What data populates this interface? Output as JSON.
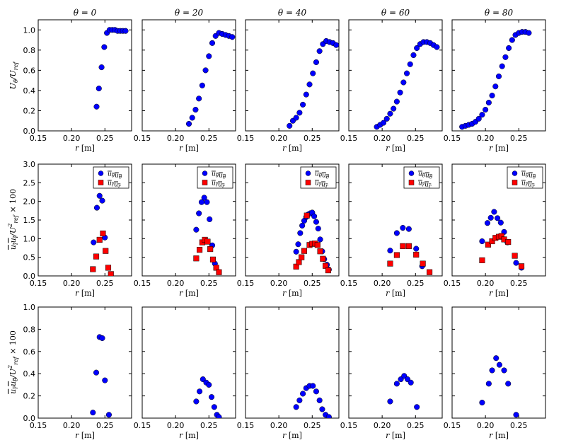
{
  "colors": {
    "theta": "#0000ff",
    "radial": "#ff0000",
    "axes": "#000000"
  },
  "chart_data": [
    {
      "type": "scatter",
      "title": "θ = 0",
      "xlabel": "r [m]",
      "ylabel": "U_θ/U_ref",
      "xlim": [
        0.15,
        0.29
      ],
      "ylim": [
        0,
        1.1
      ],
      "xticks": [
        "0.15",
        "0.20",
        "0.25"
      ],
      "yticks": [
        "0.0",
        "0.2",
        "0.4",
        "0.6",
        "0.8",
        "1.0"
      ],
      "series": [
        {
          "color": "#0000ff",
          "marker": "circle",
          "x": [
            0.2375,
            0.241,
            0.245,
            0.249,
            0.253,
            0.257,
            0.261,
            0.265,
            0.269,
            0.273,
            0.277,
            0.281
          ],
          "y": [
            0.24,
            0.42,
            0.63,
            0.83,
            0.97,
            1.0,
            1.0,
            1.0,
            0.99,
            0.99,
            0.99,
            0.99
          ]
        }
      ]
    },
    {
      "type": "scatter",
      "title": "θ = 20",
      "xlabel": "r [m]",
      "xlim": [
        0.15,
        0.29
      ],
      "ylim": [
        0,
        1.1
      ],
      "xticks": [
        "0.15",
        "0.20",
        "0.25"
      ],
      "series": [
        {
          "color": "#0000ff",
          "marker": "circle",
          "x": [
            0.22,
            0.225,
            0.23,
            0.235,
            0.24,
            0.245,
            0.25,
            0.255,
            0.26,
            0.265,
            0.27,
            0.275,
            0.28,
            0.285
          ],
          "y": [
            0.07,
            0.13,
            0.21,
            0.32,
            0.45,
            0.6,
            0.74,
            0.87,
            0.94,
            0.97,
            0.96,
            0.95,
            0.94,
            0.93
          ]
        }
      ]
    },
    {
      "type": "scatter",
      "title": "θ = 40",
      "xlabel": "r [m]",
      "xlim": [
        0.15,
        0.29
      ],
      "ylim": [
        0,
        1.1
      ],
      "xticks": [
        "0.15",
        "0.20",
        "0.25"
      ],
      "series": [
        {
          "color": "#0000ff",
          "marker": "circle",
          "x": [
            0.216,
            0.221,
            0.226,
            0.231,
            0.236,
            0.241,
            0.246,
            0.251,
            0.256,
            0.261,
            0.266,
            0.271,
            0.276,
            0.281,
            0.286
          ],
          "y": [
            0.05,
            0.1,
            0.13,
            0.18,
            0.26,
            0.36,
            0.46,
            0.57,
            0.68,
            0.79,
            0.86,
            0.89,
            0.88,
            0.87,
            0.85
          ]
        }
      ]
    },
    {
      "type": "scatter",
      "title": "θ = 60",
      "xlabel": "r [m]",
      "xlim": [
        0.15,
        0.29
      ],
      "ylim": [
        0,
        1.1
      ],
      "xticks": [
        "0.15",
        "0.20",
        "0.25"
      ],
      "series": [
        {
          "color": "#0000ff",
          "marker": "circle",
          "x": [
            0.192,
            0.197,
            0.202,
            0.207,
            0.212,
            0.217,
            0.222,
            0.227,
            0.232,
            0.237,
            0.242,
            0.247,
            0.252,
            0.257,
            0.262,
            0.267,
            0.272,
            0.277,
            0.282
          ],
          "y": [
            0.04,
            0.06,
            0.08,
            0.12,
            0.17,
            0.22,
            0.29,
            0.38,
            0.48,
            0.57,
            0.66,
            0.75,
            0.82,
            0.86,
            0.88,
            0.88,
            0.87,
            0.85,
            0.83
          ]
        }
      ]
    },
    {
      "type": "scatter",
      "title": "θ = 80",
      "xlabel": "r [m]",
      "xlim": [
        0.15,
        0.29
      ],
      "ylim": [
        0,
        1.1
      ],
      "xticks": [
        "0.15",
        "0.20",
        "0.25"
      ],
      "series": [
        {
          "color": "#0000ff",
          "marker": "circle",
          "x": [
            0.165,
            0.17,
            0.175,
            0.18,
            0.185,
            0.19,
            0.195,
            0.2,
            0.205,
            0.21,
            0.215,
            0.22,
            0.225,
            0.23,
            0.235,
            0.24,
            0.245,
            0.25,
            0.255,
            0.26,
            0.265
          ],
          "y": [
            0.04,
            0.05,
            0.06,
            0.07,
            0.09,
            0.12,
            0.16,
            0.21,
            0.28,
            0.35,
            0.44,
            0.54,
            0.64,
            0.73,
            0.82,
            0.9,
            0.95,
            0.97,
            0.98,
            0.98,
            0.97
          ]
        }
      ]
    },
    {
      "type": "scatter",
      "xlabel": "r [m]",
      "xlim": [
        0.15,
        0.29
      ],
      "ylim": [
        0,
        3.0
      ],
      "xticks": [
        "0.15",
        "0.20",
        "0.25"
      ],
      "yticks": [
        "0.0",
        "0.5",
        "1.0",
        "1.5",
        "2.0",
        "2.5",
        "3.0"
      ],
      "legend": "top-right",
      "series": [
        {
          "name": "u_θ u_θ",
          "color": "#0000ff",
          "marker": "circle",
          "x": [
            0.233,
            0.238,
            0.242,
            0.246,
            0.25
          ],
          "y": [
            0.9,
            1.83,
            2.15,
            2.02,
            1.03
          ]
        },
        {
          "name": "u_r u_r",
          "color": "#ff0000",
          "marker": "square",
          "x": [
            0.232,
            0.237,
            0.242,
            0.247,
            0.251,
            0.255,
            0.259
          ],
          "y": [
            0.18,
            0.52,
            0.97,
            1.14,
            0.67,
            0.22,
            0.05
          ]
        }
      ]
    },
    {
      "type": "scatter",
      "xlabel": "r [m]",
      "xlim": [
        0.15,
        0.29
      ],
      "ylim": [
        0,
        3.0
      ],
      "xticks": [
        "0.15",
        "0.20",
        "0.25"
      ],
      "legend": "top-right",
      "series": [
        {
          "name": "u_θ u_θ",
          "color": "#0000ff",
          "marker": "circle",
          "x": [
            0.231,
            0.235,
            0.239,
            0.243,
            0.247,
            0.251,
            0.255,
            0.259
          ],
          "y": [
            1.24,
            1.68,
            1.98,
            2.1,
            1.98,
            1.52,
            0.82,
            0.33
          ]
        },
        {
          "name": "u_r u_r",
          "color": "#ff0000",
          "marker": "square",
          "x": [
            0.231,
            0.236,
            0.24,
            0.244,
            0.248,
            0.252,
            0.256,
            0.261,
            0.265
          ],
          "y": [
            0.47,
            0.7,
            0.9,
            0.97,
            0.92,
            0.72,
            0.44,
            0.22,
            0.1
          ]
        }
      ]
    },
    {
      "type": "scatter",
      "xlabel": "r [m]",
      "xlim": [
        0.15,
        0.29
      ],
      "ylim": [
        0,
        3.0
      ],
      "xticks": [
        "0.15",
        "0.20",
        "0.25"
      ],
      "legend": "top-right",
      "series": [
        {
          "name": "u_θ u_θ",
          "color": "#0000ff",
          "marker": "circle",
          "x": [
            0.226,
            0.229,
            0.232,
            0.235,
            0.238,
            0.241,
            0.244,
            0.247,
            0.25,
            0.253,
            0.256,
            0.259,
            0.262,
            0.265,
            0.268,
            0.272,
            0.275
          ],
          "y": [
            0.65,
            0.85,
            1.15,
            1.35,
            1.48,
            1.58,
            1.65,
            1.68,
            1.7,
            1.6,
            1.45,
            1.27,
            0.98,
            0.66,
            0.45,
            0.3,
            0.17
          ]
        },
        {
          "name": "u_r u_r",
          "color": "#ff0000",
          "marker": "square",
          "x": [
            0.226,
            0.23,
            0.234,
            0.238,
            0.242,
            0.246,
            0.25,
            0.254,
            0.258,
            0.262,
            0.266,
            0.27,
            0.274
          ],
          "y": [
            0.25,
            0.37,
            0.5,
            0.67,
            1.62,
            0.83,
            0.86,
            0.87,
            0.83,
            0.66,
            0.46,
            0.27,
            0.15
          ]
        }
      ]
    },
    {
      "type": "scatter",
      "xlabel": "r [m]",
      "xlim": [
        0.15,
        0.29
      ],
      "ylim": [
        0,
        3.0
      ],
      "xticks": [
        "0.15",
        "0.20",
        "0.25"
      ],
      "legend": "top-right",
      "series": [
        {
          "name": "u_θ u_θ",
          "color": "#0000ff",
          "marker": "circle",
          "x": [
            0.212,
            0.222,
            0.231,
            0.24,
            0.251,
            0.26
          ],
          "y": [
            0.68,
            1.15,
            1.29,
            1.26,
            0.73,
            0.26
          ]
        },
        {
          "name": "u_r u_r",
          "color": "#ff0000",
          "marker": "square",
          "x": [
            0.212,
            0.222,
            0.231,
            0.24,
            0.251,
            0.261,
            0.271
          ],
          "y": [
            0.33,
            0.56,
            0.8,
            0.8,
            0.57,
            0.33,
            0.1
          ]
        }
      ]
    },
    {
      "type": "scatter",
      "xlabel": "r [m]",
      "xlim": [
        0.15,
        0.29
      ],
      "ylim": [
        0,
        3.0
      ],
      "xticks": [
        "0.15",
        "0.20",
        "0.25"
      ],
      "legend": "top-right",
      "series": [
        {
          "name": "u_θ u_θ",
          "color": "#0000ff",
          "marker": "circle",
          "x": [
            0.195,
            0.203,
            0.208,
            0.213,
            0.218,
            0.223,
            0.228,
            0.233,
            0.246,
            0.254
          ],
          "y": [
            0.93,
            1.42,
            1.56,
            1.72,
            1.55,
            1.43,
            1.18,
            0.9,
            0.35,
            0.22
          ]
        },
        {
          "name": "u_r u_r",
          "color": "#ff0000",
          "marker": "square",
          "x": [
            0.195,
            0.204,
            0.21,
            0.215,
            0.22,
            0.224,
            0.228,
            0.234,
            0.244,
            0.254
          ],
          "y": [
            0.42,
            0.84,
            0.93,
            1.02,
            1.05,
            1.07,
            0.98,
            0.91,
            0.54,
            0.26
          ]
        }
      ]
    },
    {
      "type": "scatter",
      "xlabel": "r [m]",
      "xlim": [
        0.15,
        0.29
      ],
      "ylim": [
        0,
        1.0
      ],
      "xticks": [
        "0.15",
        "0.20",
        "0.25"
      ],
      "yticks": [
        "0.0",
        "0.2",
        "0.4",
        "0.6",
        "0.8",
        "1.0"
      ],
      "series": [
        {
          "color": "#0000ff",
          "marker": "circle",
          "x": [
            0.232,
            0.237,
            0.242,
            0.246,
            0.25,
            0.256
          ],
          "y": [
            0.05,
            0.41,
            0.73,
            0.72,
            0.34,
            0.03
          ]
        }
      ]
    },
    {
      "type": "scatter",
      "xlabel": "r [m]",
      "xlim": [
        0.15,
        0.29
      ],
      "ylim": [
        0,
        1.0
      ],
      "xticks": [
        "0.15",
        "0.20",
        "0.25"
      ],
      "series": [
        {
          "color": "#0000ff",
          "marker": "circle",
          "x": [
            0.231,
            0.236,
            0.241,
            0.246,
            0.25,
            0.254,
            0.258,
            0.262,
            0.265
          ],
          "y": [
            0.15,
            0.24,
            0.35,
            0.32,
            0.3,
            0.19,
            0.1,
            0.03,
            0.01
          ]
        }
      ]
    },
    {
      "type": "scatter",
      "xlabel": "r [m]",
      "xlim": [
        0.15,
        0.29
      ],
      "ylim": [
        0,
        1.0
      ],
      "xticks": [
        "0.15",
        "0.20",
        "0.25"
      ],
      "series": [
        {
          "color": "#0000ff",
          "marker": "circle",
          "x": [
            0.226,
            0.231,
            0.236,
            0.241,
            0.246,
            0.251,
            0.256,
            0.261,
            0.265,
            0.27,
            0.275
          ],
          "y": [
            0.1,
            0.16,
            0.22,
            0.27,
            0.29,
            0.29,
            0.24,
            0.16,
            0.08,
            0.03,
            0.01
          ]
        }
      ]
    },
    {
      "type": "scatter",
      "xlabel": "r [m]",
      "xlim": [
        0.15,
        0.29
      ],
      "ylim": [
        0,
        1.0
      ],
      "xticks": [
        "0.15",
        "0.20",
        "0.25"
      ],
      "series": [
        {
          "color": "#0000ff",
          "marker": "circle",
          "x": [
            0.212,
            0.222,
            0.228,
            0.233,
            0.238,
            0.243,
            0.252
          ],
          "y": [
            0.15,
            0.31,
            0.35,
            0.38,
            0.35,
            0.32,
            0.1
          ]
        }
      ]
    },
    {
      "type": "scatter",
      "xlabel": "r [m]",
      "xlim": [
        0.15,
        0.29
      ],
      "ylim": [
        0,
        1.0
      ],
      "xticks": [
        "0.15",
        "0.20",
        "0.25"
      ],
      "series": [
        {
          "color": "#0000ff",
          "marker": "circle",
          "x": [
            0.195,
            0.205,
            0.21,
            0.216,
            0.221,
            0.228,
            0.234,
            0.246
          ],
          "y": [
            0.14,
            0.31,
            0.43,
            0.54,
            0.48,
            0.43,
            0.31,
            0.03
          ]
        }
      ]
    }
  ]
}
